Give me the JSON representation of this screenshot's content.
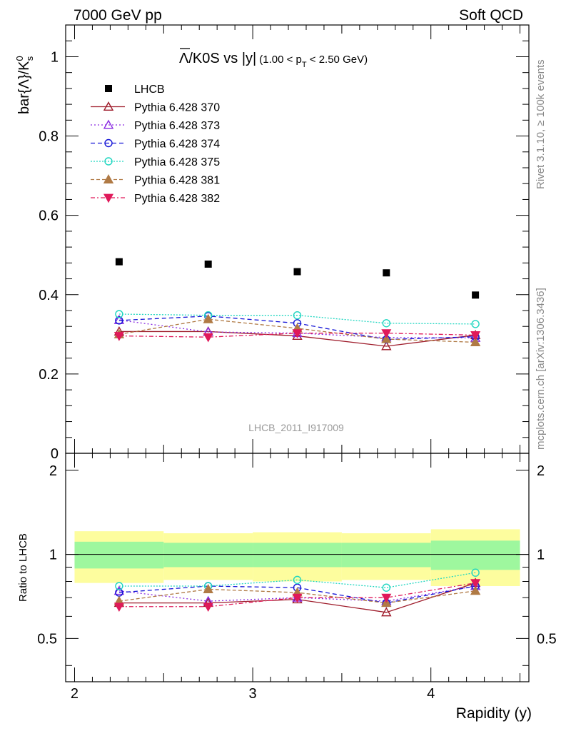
{
  "header": {
    "left": "7000 GeV pp",
    "right": "Soft QCD"
  },
  "side_labels": {
    "rivet": "Rivet 3.1.10, ≥ 100k events",
    "mcplots": "mcplots.cern.ch [arXiv:1306.3436]"
  },
  "watermark": "LHCB_2011_I917009",
  "colors": {
    "LHCB": "#000000",
    "Pythia 6.428 370": "#9e1b2a",
    "Pythia 6.428 373": "#8a2be2",
    "Pythia 6.428 374": "#1515d6",
    "Pythia 6.428 375": "#1fd6c0",
    "Pythia 6.428 381": "#b07a45",
    "Pythia 6.428 382": "#e0195a",
    "band_inner": "#9ef79e",
    "band_outer": "#fdfd9e"
  },
  "chart_data": [
    {
      "type": "scatter",
      "title_main": "Λ/K0S vs |y|",
      "title_overbar": "Λ",
      "title_rest": "/K0S vs |y|",
      "title_sub_pre": "(1.00 < p",
      "title_sub_sub": "T",
      "title_sub_post": " < 2.50 GeV)",
      "ylabel": "bar{Λ}/K°s",
      "ylabel_main": "bar{Λ}/K",
      "ylabel_sup": "0",
      "ylabel_sub": "s",
      "xlim": [
        1.95,
        4.55
      ],
      "ylim": [
        0,
        1.08
      ],
      "yticks": [
        "0",
        "0.2",
        "0.4",
        "0.6",
        "0.8",
        "1"
      ],
      "ytick_values": [
        0,
        0.2,
        0.4,
        0.6,
        0.8,
        1.0
      ],
      "x": [
        2.25,
        2.75,
        3.25,
        3.75,
        4.25
      ],
      "bin_edges": [
        2.0,
        2.5,
        3.0,
        3.5,
        4.0,
        4.5
      ],
      "series": [
        {
          "name": "LHCB",
          "marker": "square",
          "values": [
            0.483,
            0.477,
            0.458,
            0.455,
            0.399
          ]
        },
        {
          "name": "Pythia 6.428 370",
          "marker": "tri-up-open",
          "dash": "",
          "values": [
            0.307,
            0.307,
            0.296,
            0.27,
            0.298
          ]
        },
        {
          "name": "Pythia 6.428 373",
          "marker": "tri-up-open",
          "dash": "2,3",
          "values": [
            0.336,
            0.306,
            0.303,
            0.292,
            0.291
          ]
        },
        {
          "name": "Pythia 6.428 374",
          "marker": "circle-open",
          "dash": "6,4",
          "values": [
            0.335,
            0.346,
            0.328,
            0.287,
            0.294
          ]
        },
        {
          "name": "Pythia 6.428 375",
          "marker": "circle-open",
          "dash": "2,2",
          "values": [
            0.351,
            0.348,
            0.348,
            0.328,
            0.326
          ]
        },
        {
          "name": "Pythia 6.428 381",
          "marker": "tri-up-filled",
          "dash": "5,3",
          "values": [
            0.3,
            0.338,
            0.315,
            0.288,
            0.28
          ]
        },
        {
          "name": "Pythia 6.428 382",
          "marker": "tri-down-filled",
          "dash": "6,3,2,3",
          "values": [
            0.296,
            0.293,
            0.303,
            0.303,
            0.298
          ]
        }
      ]
    },
    {
      "type": "scatter",
      "ylabel": "Ratio to LHCB",
      "xlabel": "Rapidity (y)",
      "xlim": [
        1.95,
        4.55
      ],
      "ylim": [
        0.35,
        2.3
      ],
      "xticks": [
        "2",
        "3",
        "4"
      ],
      "xtick_values": [
        2,
        3,
        4
      ],
      "yticks": [
        "0.5",
        "1",
        "2"
      ],
      "ytick_values": [
        0.5,
        1,
        2
      ],
      "band_inner": [
        0.11,
        0.1,
        0.1,
        0.1,
        0.12
      ],
      "band_outer": [
        0.21,
        0.19,
        0.2,
        0.19,
        0.23
      ],
      "series": [
        {
          "name": "Pythia 6.428 370",
          "values": [
            0.67,
            0.67,
            0.69,
            0.62,
            0.79
          ]
        },
        {
          "name": "Pythia 6.428 373",
          "values": [
            0.74,
            0.68,
            0.7,
            0.68,
            0.77
          ]
        },
        {
          "name": "Pythia 6.428 374",
          "values": [
            0.73,
            0.77,
            0.76,
            0.67,
            0.77
          ]
        },
        {
          "name": "Pythia 6.428 375",
          "values": [
            0.77,
            0.77,
            0.81,
            0.76,
            0.86
          ]
        },
        {
          "name": "Pythia 6.428 381",
          "values": [
            0.68,
            0.75,
            0.73,
            0.67,
            0.74
          ]
        },
        {
          "name": "Pythia 6.428 382",
          "values": [
            0.65,
            0.65,
            0.7,
            0.7,
            0.79
          ]
        }
      ]
    }
  ]
}
